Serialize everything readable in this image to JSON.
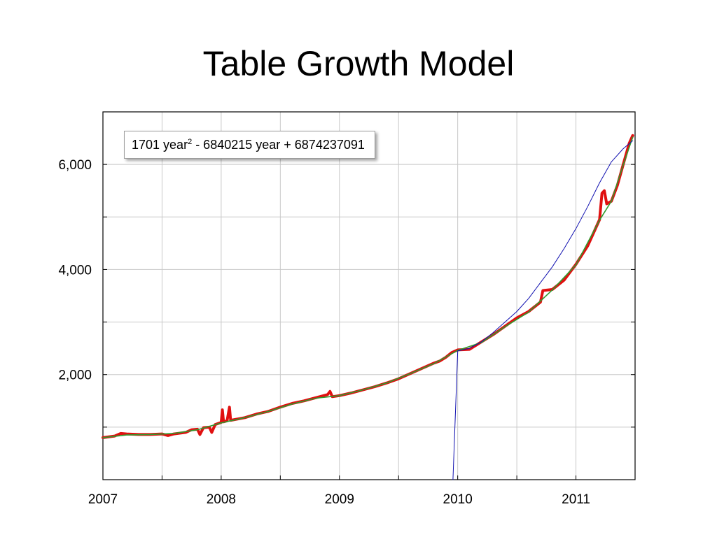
{
  "slide": {
    "title": "Table Growth Model"
  },
  "chart_data": {
    "type": "line",
    "title": "Table Growth Model",
    "xlabel": "",
    "ylabel": "",
    "xlim": [
      2007,
      2011.5
    ],
    "ylim": [
      0,
      7000
    ],
    "x_ticks": [
      2007,
      2008,
      2009,
      2010,
      2011
    ],
    "x_tick_labels": [
      "2007",
      "2008",
      "2009",
      "2010",
      "2011"
    ],
    "y_ticks": [
      2000,
      4000,
      6000
    ],
    "y_tick_labels": [
      "2,000",
      "4,000",
      "6,000"
    ],
    "grid": true,
    "annotation": {
      "text_before_exp": "1701 year",
      "exponent": "2",
      "text_after_exp": " - 6840215 year + 6874237091"
    },
    "series": [
      {
        "color": "#e01010",
        "values": [
          [
            2007.0,
            800
          ],
          [
            2007.1,
            830
          ],
          [
            2007.15,
            880
          ],
          [
            2007.2,
            870
          ],
          [
            2007.3,
            860
          ],
          [
            2007.4,
            860
          ],
          [
            2007.5,
            870
          ],
          [
            2007.55,
            840
          ],
          [
            2007.6,
            870
          ],
          [
            2007.7,
            900
          ],
          [
            2007.75,
            950
          ],
          [
            2007.8,
            960
          ],
          [
            2007.82,
            860
          ],
          [
            2007.85,
            990
          ],
          [
            2007.9,
            1000
          ],
          [
            2007.92,
            900
          ],
          [
            2007.95,
            1050
          ],
          [
            2008.0,
            1090
          ],
          [
            2008.01,
            1330
          ],
          [
            2008.02,
            1100
          ],
          [
            2008.05,
            1120
          ],
          [
            2008.07,
            1380
          ],
          [
            2008.08,
            1130
          ],
          [
            2008.2,
            1180
          ],
          [
            2008.3,
            1250
          ],
          [
            2008.4,
            1300
          ],
          [
            2008.5,
            1380
          ],
          [
            2008.6,
            1450
          ],
          [
            2008.7,
            1500
          ],
          [
            2008.8,
            1560
          ],
          [
            2008.9,
            1620
          ],
          [
            2008.92,
            1680
          ],
          [
            2008.94,
            1580
          ],
          [
            2009.0,
            1600
          ],
          [
            2009.1,
            1650
          ],
          [
            2009.2,
            1710
          ],
          [
            2009.3,
            1770
          ],
          [
            2009.4,
            1840
          ],
          [
            2009.5,
            1920
          ],
          [
            2009.6,
            2020
          ],
          [
            2009.7,
            2120
          ],
          [
            2009.8,
            2220
          ],
          [
            2009.85,
            2260
          ],
          [
            2009.9,
            2330
          ],
          [
            2009.95,
            2420
          ],
          [
            2010.0,
            2470
          ],
          [
            2010.1,
            2480
          ],
          [
            2010.2,
            2620
          ],
          [
            2010.3,
            2760
          ],
          [
            2010.4,
            2920
          ],
          [
            2010.5,
            3080
          ],
          [
            2010.6,
            3200
          ],
          [
            2010.7,
            3380
          ],
          [
            2010.72,
            3600
          ],
          [
            2010.8,
            3620
          ],
          [
            2010.9,
            3800
          ],
          [
            2011.0,
            4100
          ],
          [
            2011.1,
            4450
          ],
          [
            2011.2,
            4950
          ],
          [
            2011.22,
            5450
          ],
          [
            2011.24,
            5500
          ],
          [
            2011.26,
            5250
          ],
          [
            2011.3,
            5300
          ],
          [
            2011.35,
            5600
          ],
          [
            2011.4,
            6000
          ],
          [
            2011.45,
            6400
          ],
          [
            2011.48,
            6550
          ]
        ]
      },
      {
        "color": "#2e9b2e",
        "values": [
          [
            2007.0,
            800
          ],
          [
            2007.2,
            850
          ],
          [
            2007.4,
            860
          ],
          [
            2007.6,
            880
          ],
          [
            2007.8,
            950
          ],
          [
            2008.0,
            1080
          ],
          [
            2008.2,
            1180
          ],
          [
            2008.4,
            1300
          ],
          [
            2008.6,
            1440
          ],
          [
            2008.8,
            1550
          ],
          [
            2009.0,
            1600
          ],
          [
            2009.2,
            1710
          ],
          [
            2009.4,
            1840
          ],
          [
            2009.6,
            2020
          ],
          [
            2009.8,
            2210
          ],
          [
            2010.0,
            2460
          ],
          [
            2010.2,
            2610
          ],
          [
            2010.4,
            2910
          ],
          [
            2010.6,
            3190
          ],
          [
            2010.8,
            3610
          ],
          [
            2011.0,
            4090
          ],
          [
            2011.2,
            4940
          ],
          [
            2011.3,
            5300
          ],
          [
            2011.4,
            5990
          ],
          [
            2011.48,
            6520
          ]
        ]
      },
      {
        "color": "#1010b0",
        "values": [
          [
            2009.96,
            0
          ],
          [
            2010.0,
            2450
          ],
          [
            2010.1,
            2500
          ],
          [
            2010.2,
            2620
          ],
          [
            2010.3,
            2800
          ],
          [
            2010.4,
            3000
          ],
          [
            2010.5,
            3200
          ],
          [
            2010.6,
            3450
          ],
          [
            2010.7,
            3750
          ],
          [
            2010.8,
            4050
          ],
          [
            2010.9,
            4400
          ],
          [
            2011.0,
            4780
          ],
          [
            2011.1,
            5200
          ],
          [
            2011.2,
            5650
          ],
          [
            2011.3,
            6050
          ],
          [
            2011.4,
            6300
          ],
          [
            2011.48,
            6450
          ]
        ]
      }
    ]
  }
}
